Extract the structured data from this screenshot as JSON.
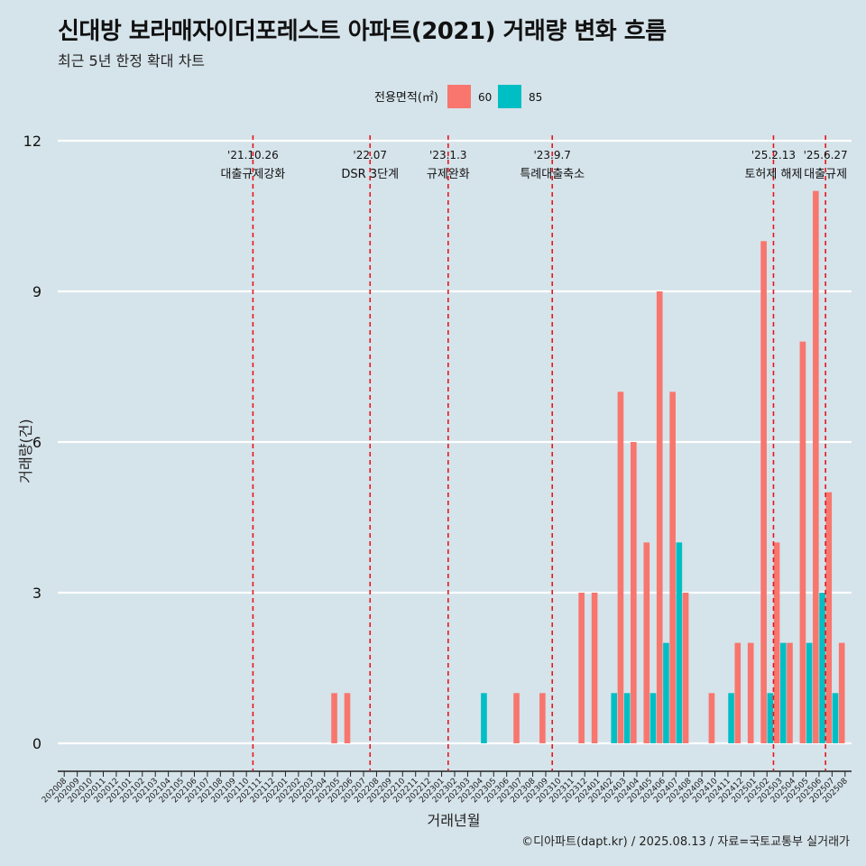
{
  "title": "신대방 보라매자이더포레스트 아파트(2021) 거래량 변화 흐름",
  "subtitle": "최근 5년 한정 확대 차트",
  "caption": "©디아파트(dapt.kr) / 2025.08.13 / 자료=국토교통부 실거래가",
  "chart_data": {
    "type": "bar",
    "xlabel": "거래년월",
    "ylabel": "거래량(건)",
    "ylim": [
      0,
      12
    ],
    "yticks": [
      0,
      3,
      6,
      9,
      12
    ],
    "legend": {
      "title": "전용면적(㎡)",
      "position": "top",
      "items": [
        {
          "label": "60",
          "color": "#f8766d"
        },
        {
          "label": "85",
          "color": "#00bfc4"
        }
      ]
    },
    "categories": [
      "202008",
      "202009",
      "202010",
      "202011",
      "202012",
      "202101",
      "202102",
      "202103",
      "202104",
      "202105",
      "202106",
      "202107",
      "202108",
      "202109",
      "202110",
      "202111",
      "202112",
      "202201",
      "202202",
      "202203",
      "202204",
      "202205",
      "202206",
      "202207",
      "202208",
      "202209",
      "202210",
      "202211",
      "202212",
      "202301",
      "202302",
      "202303",
      "202304",
      "202305",
      "202306",
      "202307",
      "202308",
      "202309",
      "202310",
      "202311",
      "202312",
      "202401",
      "202402",
      "202403",
      "202404",
      "202405",
      "202406",
      "202407",
      "202408",
      "202409",
      "202410",
      "202411",
      "202412",
      "202501",
      "202502",
      "202503",
      "202504",
      "202505",
      "202506",
      "202507",
      "202508"
    ],
    "series": [
      {
        "name": "60",
        "color": "#f8766d",
        "values": [
          0,
          0,
          0,
          0,
          0,
          0,
          0,
          0,
          0,
          0,
          0,
          0,
          0,
          0,
          0,
          0,
          0,
          0,
          0,
          0,
          0,
          1,
          1,
          0,
          0,
          0,
          0,
          0,
          0,
          0,
          0,
          0,
          0,
          0,
          0,
          1,
          0,
          1,
          0,
          0,
          3,
          3,
          0,
          7,
          6,
          4,
          9,
          7,
          3,
          0,
          1,
          0,
          2,
          2,
          10,
          4,
          2,
          8,
          11,
          5,
          2
        ]
      },
      {
        "name": "85",
        "color": "#00bfc4",
        "values": [
          0,
          0,
          0,
          0,
          0,
          0,
          0,
          0,
          0,
          0,
          0,
          0,
          0,
          0,
          0,
          0,
          0,
          0,
          0,
          0,
          0,
          0,
          0,
          0,
          0,
          0,
          0,
          0,
          0,
          0,
          0,
          0,
          1,
          0,
          0,
          0,
          0,
          0,
          0,
          0,
          0,
          0,
          1,
          1,
          0,
          1,
          2,
          4,
          0,
          0,
          0,
          1,
          0,
          0,
          1,
          2,
          0,
          2,
          3,
          1,
          0
        ]
      }
    ],
    "events": [
      {
        "date": "'21.10.26",
        "label": "대출규제강화",
        "after": "202110"
      },
      {
        "date": "'22.07",
        "label": "DSR 3단계",
        "after": "202207"
      },
      {
        "date": "'23.1.3",
        "label": "규제완화",
        "after": "202301"
      },
      {
        "date": "'23.9.7",
        "label": "특례대출축소",
        "after": "202309"
      },
      {
        "date": "'25.2.13",
        "label": "토허제 해제",
        "after": "202502"
      },
      {
        "date": "'25.6.27",
        "label": "대출규제",
        "after": "202506"
      }
    ],
    "event_line_color": "#e8161b",
    "grid": true
  }
}
